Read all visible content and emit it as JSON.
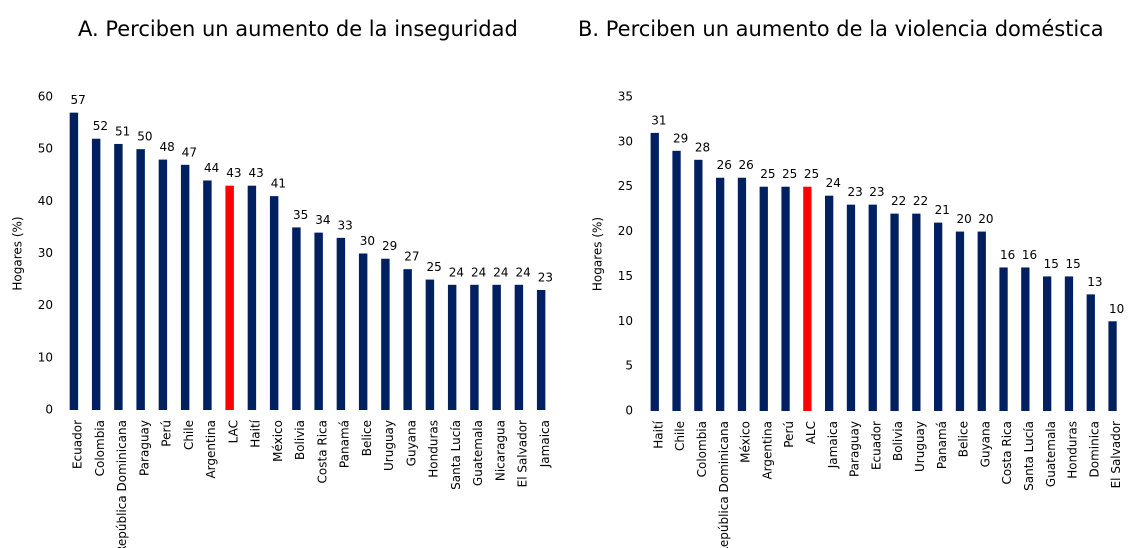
{
  "chart_data": [
    {
      "type": "bar",
      "title": "A. Perciben un aumento de la inseguridad",
      "y_label": "Hogares (%)",
      "categories": [
        "Ecuador",
        "Colombia",
        "República Dominicana",
        "Paraguay",
        "Perú",
        "Chile",
        "Argentina",
        "LAC",
        "Haití",
        "México",
        "Bolivia",
        "Costa Rica",
        "Panamá",
        "Belice",
        "Uruguay",
        "Guyana",
        "Honduras",
        "Santa Lucía",
        "Guatemala",
        "Nicaragua",
        "El Salvador",
        "Jamaica"
      ],
      "values": [
        57,
        52,
        51,
        50,
        48,
        47,
        44,
        43,
        43,
        41,
        35,
        34,
        33,
        30,
        29,
        27,
        25,
        24,
        24,
        24,
        24,
        23
      ],
      "colors": [
        "#002060",
        "#002060",
        "#002060",
        "#002060",
        "#002060",
        "#002060",
        "#002060",
        "#ff0000",
        "#002060",
        "#002060",
        "#002060",
        "#002060",
        "#002060",
        "#002060",
        "#002060",
        "#002060",
        "#002060",
        "#002060",
        "#002060",
        "#002060",
        "#002060",
        "#002060"
      ],
      "ylim": [
        0,
        60
      ],
      "yticks": [
        0,
        10,
        20,
        30,
        40,
        50,
        60
      ],
      "grid": false
    },
    {
      "type": "bar",
      "title": "B. Perciben un aumento de la violencia doméstica",
      "y_label": "Hogares (%)",
      "categories": [
        "Haití",
        "Chile",
        "Colombia",
        "República Dominicana",
        "México",
        "Argentina",
        "Perú",
        "ALC",
        "Jamaica",
        "Paraguay",
        "Ecuador",
        "Bolivia",
        "Uruguay",
        "Panamá",
        "Belice",
        "Guyana",
        "Costa Rica",
        "Santa Lucía",
        "Guatemala",
        "Honduras",
        "Dominica",
        "El Salvador"
      ],
      "values": [
        31,
        29,
        28,
        26,
        26,
        25,
        25,
        25,
        24,
        23,
        23,
        22,
        22,
        21,
        20,
        20,
        16,
        16,
        15,
        15,
        13,
        10
      ],
      "colors": [
        "#002060",
        "#002060",
        "#002060",
        "#002060",
        "#002060",
        "#002060",
        "#002060",
        "#ff0000",
        "#002060",
        "#002060",
        "#002060",
        "#002060",
        "#002060",
        "#002060",
        "#002060",
        "#002060",
        "#002060",
        "#002060",
        "#002060",
        "#002060",
        "#002060",
        "#002060"
      ],
      "ylim": [
        0,
        35
      ],
      "yticks": [
        0,
        5,
        10,
        15,
        20,
        25,
        30,
        35
      ],
      "grid": false
    }
  ]
}
